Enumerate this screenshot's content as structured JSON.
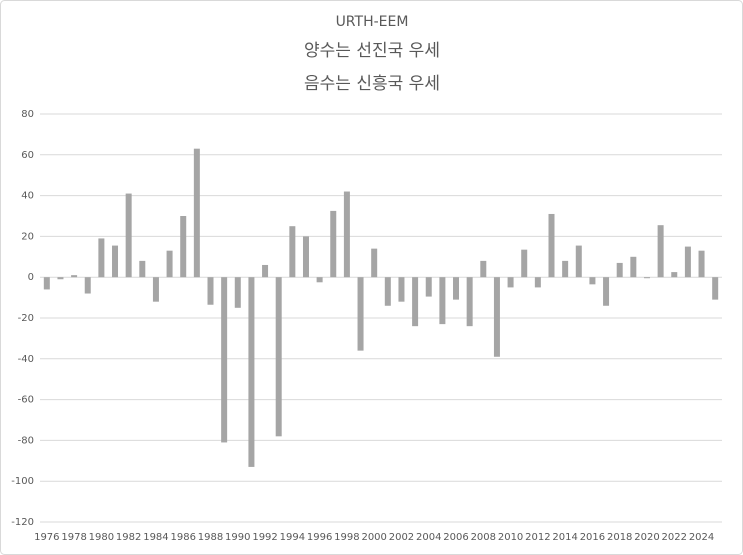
{
  "chart_data": {
    "type": "bar",
    "title": "URTH-EEM",
    "subtitle": [
      "양수는 선진국 우세",
      "음수는 신흥국 우세"
    ],
    "categories": [
      "1976",
      null,
      "1978",
      null,
      "1980",
      null,
      "1982",
      null,
      "1984",
      null,
      "1986",
      null,
      "1988",
      null,
      "1990",
      null,
      "1992",
      null,
      "1994",
      null,
      "1996",
      null,
      "1998",
      null,
      "2000",
      null,
      "2002",
      null,
      "2004",
      null,
      "2006",
      null,
      "2008",
      null,
      "2010",
      null,
      "2012",
      null,
      "2014",
      null,
      "2016",
      null,
      "2018",
      null,
      "2020",
      null,
      "2022",
      null,
      "2024",
      null
    ],
    "values": [
      -6,
      -1,
      1,
      -8,
      19,
      15.5,
      41,
      8,
      -12,
      13,
      30,
      63,
      -13.5,
      -81,
      -15,
      -93,
      6,
      -78,
      25,
      20,
      -2.5,
      32.5,
      42,
      -36,
      14,
      -14,
      -12,
      -24,
      -9.5,
      -23,
      -11,
      -24,
      8,
      -39,
      -5,
      13.5,
      -5,
      31,
      8,
      15.5,
      -3.5,
      -14,
      7,
      10,
      -0.5,
      25.5,
      2.5,
      15,
      13,
      -11
    ],
    "color": "#a5a5a5",
    "ylim": [
      -120,
      80
    ],
    "yticks": [
      -120,
      -100,
      -80,
      -60,
      -40,
      -20,
      0,
      20,
      40,
      60,
      80
    ],
    "grid": true
  }
}
